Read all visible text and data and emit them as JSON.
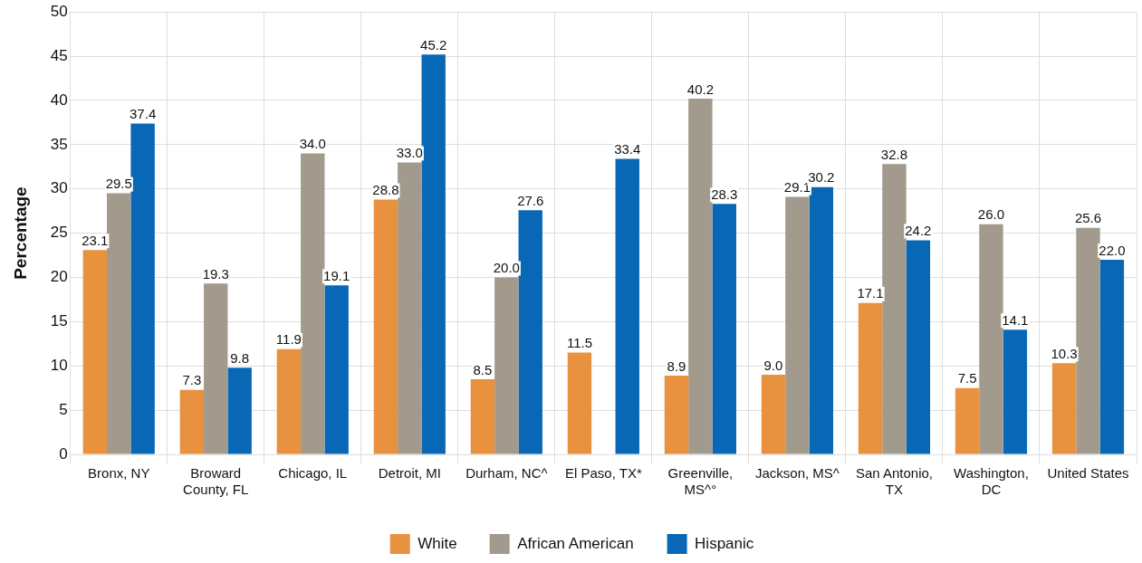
{
  "chart_data": {
    "type": "bar",
    "ylabel": "Percentage",
    "categories": [
      "Bronx, NY",
      "Broward County, FL",
      "Chicago, IL",
      "Detroit, MI",
      "Durham, NC^",
      "El Paso, TX*",
      "Greenville, MS^°",
      "Jackson, MS^",
      "San Antonio, TX",
      "Washington, DC",
      "United States"
    ],
    "series": [
      {
        "name": "White",
        "color": "#e8913f",
        "values": [
          23.1,
          7.3,
          11.9,
          28.8,
          8.5,
          11.5,
          8.9,
          9.0,
          17.1,
          7.5,
          10.3
        ],
        "value_labels": [
          "23.1",
          "7.3",
          "11.9",
          "28.8",
          "8.5",
          "11.5",
          "8.9",
          "9.0",
          "17.1",
          "7.5",
          "10.3"
        ]
      },
      {
        "name": "African American",
        "color": "#a29a8c",
        "values": [
          29.5,
          19.3,
          34.0,
          33.0,
          20.0,
          null,
          40.2,
          29.1,
          32.8,
          26.0,
          25.6
        ],
        "value_labels": [
          "29.5",
          "19.3",
          "34.0",
          "33.0",
          "20.0",
          null,
          "40.2",
          "29.1",
          "32.8",
          "26.0",
          "25.6"
        ]
      },
      {
        "name": "Hispanic",
        "color": "#0868b5",
        "values": [
          37.4,
          9.8,
          19.1,
          45.2,
          27.6,
          33.4,
          28.3,
          30.2,
          24.2,
          14.1,
          22.0
        ],
        "value_labels": [
          "37.4",
          "9.8",
          "19.1",
          "45.2",
          "27.6",
          "33.4",
          "28.3",
          "30.2",
          "24.2",
          "14.1",
          "22.0"
        ]
      }
    ],
    "ylim": [
      0,
      50
    ],
    "yticks": [
      0,
      5,
      10,
      15,
      20,
      25,
      30,
      35,
      40,
      45,
      50
    ],
    "grid": true,
    "legend": "bottom"
  }
}
